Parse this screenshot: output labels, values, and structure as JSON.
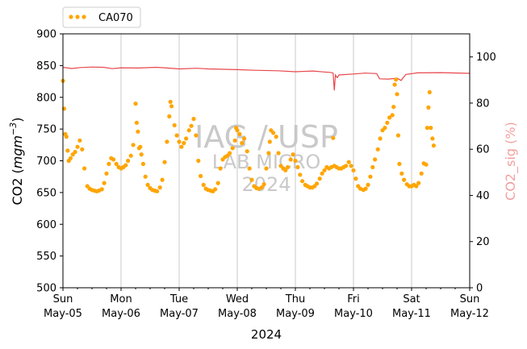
{
  "chart_data": {
    "type": "scatter",
    "title": "",
    "xlabel": "2024",
    "ylabel_main": "CO2 (",
    "ylabel_unit": "mgm",
    "ylabel_exp": "−3",
    "ylabel_close": ")",
    "y2label": "CO2_sig (%)",
    "xlim_days": [
      0,
      7
    ],
    "ylim": [
      500,
      900
    ],
    "y2lim": [
      0,
      110
    ],
    "y_ticks": [
      "500",
      "550",
      "600",
      "650",
      "700",
      "750",
      "800",
      "850",
      "900"
    ],
    "y2_ticks": [
      "0",
      "20",
      "40",
      "60",
      "80",
      "100"
    ],
    "x_ticks": [
      {
        "day": "Sun",
        "date": "May-05"
      },
      {
        "day": "Mon",
        "date": "May-06"
      },
      {
        "day": "Tue",
        "date": "May-07"
      },
      {
        "day": "Wed",
        "date": "May-08"
      },
      {
        "day": "Thu",
        "date": "May-09"
      },
      {
        "day": "Fri",
        "date": "May-10"
      },
      {
        "day": "Sat",
        "date": "May-11"
      },
      {
        "day": "Sun",
        "date": "May-12"
      }
    ],
    "legend": {
      "position": "top-left",
      "entries": [
        "CA070"
      ]
    },
    "grid": "vertical major day lines",
    "watermark": [
      "IAG / USP",
      "LAB MICRO",
      "2024"
    ],
    "colors": {
      "co2": "#ffa500",
      "signal": "#e8474b",
      "right_axis_label": "#f4a0a0",
      "grid": "#c8c8c8",
      "watermark": "#c9c9c9"
    },
    "series": [
      {
        "name": "CA070",
        "axis": "left",
        "unit": "days since May-05 00:00",
        "points": [
          [
            0.0,
            826
          ],
          [
            0.02,
            782
          ],
          [
            0.04,
            742
          ],
          [
            0.06,
            738
          ],
          [
            0.08,
            716
          ],
          [
            0.1,
            700
          ],
          [
            0.13,
            704
          ],
          [
            0.17,
            710
          ],
          [
            0.21,
            714
          ],
          [
            0.25,
            722
          ],
          [
            0.29,
            732
          ],
          [
            0.33,
            718
          ],
          [
            0.37,
            688
          ],
          [
            0.42,
            660
          ],
          [
            0.46,
            656
          ],
          [
            0.5,
            654
          ],
          [
            0.54,
            653
          ],
          [
            0.58,
            652
          ],
          [
            0.62,
            653
          ],
          [
            0.67,
            655
          ],
          [
            0.71,
            665
          ],
          [
            0.75,
            680
          ],
          [
            0.79,
            695
          ],
          [
            0.83,
            704
          ],
          [
            0.87,
            702
          ],
          [
            0.92,
            695
          ],
          [
            0.96,
            690
          ],
          [
            1.0,
            688
          ],
          [
            1.04,
            690
          ],
          [
            1.08,
            693
          ],
          [
            1.12,
            700
          ],
          [
            1.17,
            708
          ],
          [
            1.21,
            725
          ],
          [
            1.25,
            790
          ],
          [
            1.27,
            760
          ],
          [
            1.29,
            746
          ],
          [
            1.31,
            720
          ],
          [
            1.33,
            722
          ],
          [
            1.35,
            710
          ],
          [
            1.38,
            695
          ],
          [
            1.42,
            675
          ],
          [
            1.46,
            662
          ],
          [
            1.5,
            657
          ],
          [
            1.54,
            654
          ],
          [
            1.58,
            653
          ],
          [
            1.62,
            652
          ],
          [
            1.67,
            658
          ],
          [
            1.71,
            670
          ],
          [
            1.75,
            698
          ],
          [
            1.79,
            730
          ],
          [
            1.83,
            770
          ],
          [
            1.85,
            793
          ],
          [
            1.87,
            786
          ],
          [
            1.92,
            756
          ],
          [
            1.96,
            740
          ],
          [
            2.0,
            730
          ],
          [
            2.04,
            722
          ],
          [
            2.08,
            728
          ],
          [
            2.12,
            735
          ],
          [
            2.17,
            748
          ],
          [
            2.21,
            755
          ],
          [
            2.25,
            766
          ],
          [
            2.29,
            740
          ],
          [
            2.33,
            700
          ],
          [
            2.37,
            676
          ],
          [
            2.42,
            662
          ],
          [
            2.46,
            656
          ],
          [
            2.5,
            654
          ],
          [
            2.54,
            653
          ],
          [
            2.58,
            652
          ],
          [
            2.62,
            655
          ],
          [
            2.67,
            665
          ],
          [
            2.71,
            688
          ],
          [
            2.75,
            702
          ],
          [
            2.79,
            706
          ],
          [
            2.83,
            708
          ],
          [
            2.87,
            712
          ],
          [
            2.92,
            720
          ],
          [
            2.96,
            732
          ],
          [
            2.98,
            752
          ],
          [
            3.0,
            748
          ],
          [
            3.04,
            742
          ],
          [
            3.08,
            728
          ],
          [
            3.12,
            735
          ],
          [
            3.17,
            715
          ],
          [
            3.21,
            688
          ],
          [
            3.25,
            670
          ],
          [
            3.29,
            660
          ],
          [
            3.33,
            657
          ],
          [
            3.37,
            656
          ],
          [
            3.42,
            658
          ],
          [
            3.46,
            663
          ],
          [
            3.5,
            688
          ],
          [
            3.54,
            712
          ],
          [
            3.56,
            730
          ],
          [
            3.58,
            748
          ],
          [
            3.62,
            744
          ],
          [
            3.67,
            738
          ],
          [
            3.71,
            712
          ],
          [
            3.75,
            692
          ],
          [
            3.79,
            688
          ],
          [
            3.83,
            685
          ],
          [
            3.87,
            690
          ],
          [
            3.92,
            702
          ],
          [
            3.96,
            710
          ],
          [
            4.0,
            700
          ],
          [
            4.04,
            690
          ],
          [
            4.08,
            678
          ],
          [
            4.12,
            668
          ],
          [
            4.17,
            662
          ],
          [
            4.21,
            660
          ],
          [
            4.25,
            658
          ],
          [
            4.29,
            658
          ],
          [
            4.33,
            660
          ],
          [
            4.37,
            664
          ],
          [
            4.42,
            672
          ],
          [
            4.46,
            680
          ],
          [
            4.5,
            685
          ],
          [
            4.54,
            690
          ],
          [
            4.58,
            688
          ],
          [
            4.62,
            690
          ],
          [
            4.65,
            736
          ],
          [
            4.67,
            692
          ],
          [
            4.71,
            690
          ],
          [
            4.75,
            688
          ],
          [
            4.79,
            688
          ],
          [
            4.83,
            690
          ],
          [
            4.87,
            692
          ],
          [
            4.92,
            698
          ],
          [
            4.96,
            692
          ],
          [
            5.0,
            685
          ],
          [
            5.04,
            672
          ],
          [
            5.08,
            660
          ],
          [
            5.12,
            656
          ],
          [
            5.17,
            654
          ],
          [
            5.21,
            656
          ],
          [
            5.25,
            662
          ],
          [
            5.29,
            675
          ],
          [
            5.33,
            690
          ],
          [
            5.37,
            702
          ],
          [
            5.42,
            718
          ],
          [
            5.46,
            735
          ],
          [
            5.5,
            748
          ],
          [
            5.54,
            752
          ],
          [
            5.58,
            760
          ],
          [
            5.62,
            768
          ],
          [
            5.67,
            772
          ],
          [
            5.69,
            785
          ],
          [
            5.71,
            820
          ],
          [
            5.73,
            828
          ],
          [
            5.75,
            805
          ],
          [
            5.77,
            740
          ],
          [
            5.79,
            695
          ],
          [
            5.83,
            680
          ],
          [
            5.87,
            670
          ],
          [
            5.92,
            663
          ],
          [
            5.96,
            660
          ],
          [
            6.0,
            660
          ],
          [
            6.04,
            662
          ],
          [
            6.08,
            660
          ],
          [
            6.12,
            665
          ],
          [
            6.17,
            680
          ],
          [
            6.21,
            696
          ],
          [
            6.25,
            694
          ],
          [
            6.27,
            752
          ],
          [
            6.29,
            784
          ],
          [
            6.31,
            808
          ],
          [
            6.33,
            752
          ],
          [
            6.36,
            735
          ],
          [
            6.38,
            724
          ]
        ]
      },
      {
        "name": "",
        "axis": "right",
        "type": "line",
        "points": [
          [
            0.0,
            95.5
          ],
          [
            0.15,
            95.0
          ],
          [
            0.3,
            95.4
          ],
          [
            0.5,
            95.6
          ],
          [
            0.7,
            95.5
          ],
          [
            0.85,
            94.9
          ],
          [
            1.0,
            95.3
          ],
          [
            1.3,
            95.2
          ],
          [
            1.6,
            95.5
          ],
          [
            1.8,
            95.2
          ],
          [
            2.0,
            94.8
          ],
          [
            2.3,
            95.1
          ],
          [
            2.5,
            94.8
          ],
          [
            3.0,
            94.5
          ],
          [
            3.3,
            94.2
          ],
          [
            3.7,
            94.0
          ],
          [
            4.0,
            93.6
          ],
          [
            4.3,
            93.9
          ],
          [
            4.5,
            93.5
          ],
          [
            4.6,
            93.3
          ],
          [
            4.65,
            93.0
          ],
          [
            4.67,
            85.5
          ],
          [
            4.69,
            92.2
          ],
          [
            4.72,
            91.0
          ],
          [
            4.75,
            92.2
          ],
          [
            5.0,
            92.6
          ],
          [
            5.2,
            93.0
          ],
          [
            5.4,
            92.8
          ],
          [
            5.45,
            90.5
          ],
          [
            5.6,
            90.4
          ],
          [
            5.75,
            90.8
          ],
          [
            5.82,
            89.8
          ],
          [
            5.9,
            92.4
          ],
          [
            6.1,
            93.1
          ],
          [
            6.5,
            93.2
          ],
          [
            7.0,
            92.9
          ]
        ]
      }
    ]
  }
}
